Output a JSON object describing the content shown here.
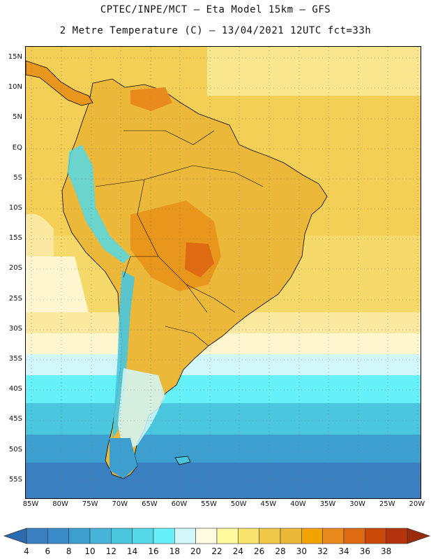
{
  "header": {
    "title_line1": "CPTEC/INPE/MCT –  Eta Model 15km – GFS",
    "title_line2": "2 Metre Temperature (C) – 13/04/2021 12UTC fct=33h"
  },
  "map": {
    "lat_labels": [
      "15N",
      "10N",
      "5N",
      "EQ",
      "5S",
      "10S",
      "15S",
      "20S",
      "25S",
      "30S",
      "35S",
      "40S",
      "45S",
      "50S",
      "55S"
    ],
    "lon_labels": [
      "85W",
      "80W",
      "75W",
      "70W",
      "65W",
      "60W",
      "55W",
      "50W",
      "45W",
      "40W",
      "35W",
      "30W",
      "25W",
      "20W"
    ],
    "region": "South America"
  },
  "colorbar": {
    "ticks": [
      "4",
      "6",
      "8",
      "10",
      "12",
      "14",
      "16",
      "18",
      "20",
      "22",
      "24",
      "26",
      "28",
      "30",
      "32",
      "34",
      "36",
      "38"
    ],
    "colors": [
      "#3a7fc0",
      "#3a8cc8",
      "#3d9fd0",
      "#45b4d8",
      "#4bc6df",
      "#55d8e8",
      "#66f0f8",
      "#d2f7fa",
      "#fffbe2",
      "#fffa9e",
      "#f8e36e",
      "#f0c84a",
      "#ecb83a",
      "#f2a300",
      "#e88a1c",
      "#de6a12",
      "#c9480a",
      "#b2330c"
    ],
    "low_color": "#2b6cb0",
    "high_color": "#9a2a0a"
  }
}
